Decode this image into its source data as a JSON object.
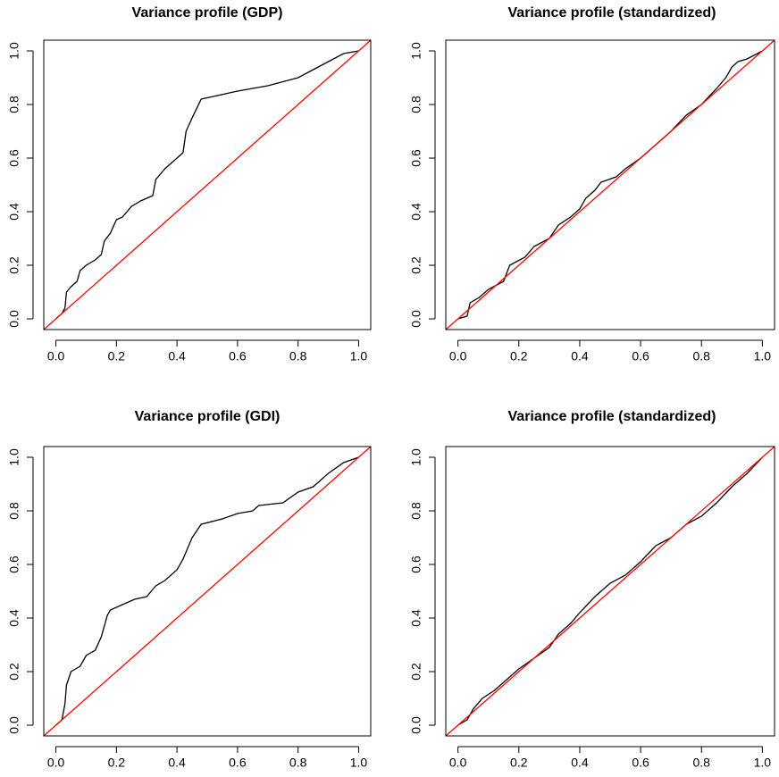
{
  "chart_data": [
    {
      "type": "line",
      "title": "Variance profile (GDP)",
      "xlim": [
        -0.04,
        1.04
      ],
      "ylim": [
        -0.04,
        1.04
      ],
      "xticks": [
        {
          "value": 0,
          "label": "0.0"
        },
        {
          "value": 0.2,
          "label": "0.2"
        },
        {
          "value": 0.4,
          "label": "0.4"
        },
        {
          "value": 0.6,
          "label": "0.6"
        },
        {
          "value": 0.8,
          "label": "0.8"
        },
        {
          "value": 1,
          "label": "1.0"
        }
      ],
      "yticks": [
        {
          "value": 0,
          "label": "0.0"
        },
        {
          "value": 0.2,
          "label": "0.2"
        },
        {
          "value": 0.4,
          "label": "0.4"
        },
        {
          "value": 0.6,
          "label": "0.6"
        },
        {
          "value": 0.8,
          "label": "0.8"
        },
        {
          "value": 1,
          "label": "1.0"
        }
      ],
      "series": [
        {
          "color": "#000000",
          "x": [
            0,
            0.02,
            0.03,
            0.035,
            0.05,
            0.07,
            0.08,
            0.1,
            0.13,
            0.15,
            0.16,
            0.18,
            0.2,
            0.22,
            0.25,
            0.28,
            0.32,
            0.33,
            0.36,
            0.4,
            0.42,
            0.43,
            0.45,
            0.48,
            0.52,
            0.6,
            0.7,
            0.8,
            0.85,
            0.9,
            0.95,
            1
          ],
          "values": [
            0,
            0.02,
            0.04,
            0.1,
            0.12,
            0.14,
            0.18,
            0.2,
            0.22,
            0.24,
            0.29,
            0.32,
            0.37,
            0.38,
            0.42,
            0.44,
            0.46,
            0.52,
            0.56,
            0.6,
            0.62,
            0.7,
            0.75,
            0.82,
            0.83,
            0.85,
            0.87,
            0.9,
            0.93,
            0.96,
            0.99,
            1
          ]
        },
        {
          "color": "#ff0000",
          "x": [
            -0.04,
            1.04
          ],
          "values": [
            -0.04,
            1.04
          ]
        }
      ]
    },
    {
      "type": "line",
      "title": "Variance profile (standardized)",
      "xlim": [
        -0.04,
        1.04
      ],
      "ylim": [
        -0.04,
        1.04
      ],
      "xticks": [
        {
          "value": 0,
          "label": "0.0"
        },
        {
          "value": 0.2,
          "label": "0.2"
        },
        {
          "value": 0.4,
          "label": "0.4"
        },
        {
          "value": 0.6,
          "label": "0.6"
        },
        {
          "value": 0.8,
          "label": "0.8"
        },
        {
          "value": 1,
          "label": "1.0"
        }
      ],
      "yticks": [
        {
          "value": 0,
          "label": "0.0"
        },
        {
          "value": 0.2,
          "label": "0.2"
        },
        {
          "value": 0.4,
          "label": "0.4"
        },
        {
          "value": 0.6,
          "label": "0.6"
        },
        {
          "value": 0.8,
          "label": "0.8"
        },
        {
          "value": 1,
          "label": "1.0"
        }
      ],
      "series": [
        {
          "color": "#000000",
          "x": [
            0,
            0.03,
            0.04,
            0.07,
            0.1,
            0.15,
            0.17,
            0.22,
            0.25,
            0.3,
            0.33,
            0.37,
            0.4,
            0.42,
            0.45,
            0.47,
            0.52,
            0.55,
            0.6,
            0.65,
            0.7,
            0.75,
            0.8,
            0.85,
            0.88,
            0.9,
            0.92,
            0.95,
            1
          ],
          "values": [
            0,
            0.01,
            0.06,
            0.08,
            0.11,
            0.14,
            0.2,
            0.23,
            0.27,
            0.3,
            0.35,
            0.38,
            0.41,
            0.45,
            0.48,
            0.51,
            0.53,
            0.56,
            0.6,
            0.65,
            0.7,
            0.76,
            0.8,
            0.86,
            0.9,
            0.94,
            0.96,
            0.97,
            1
          ]
        },
        {
          "color": "#ff0000",
          "x": [
            -0.04,
            1.04
          ],
          "values": [
            -0.04,
            1.04
          ]
        }
      ]
    },
    {
      "type": "line",
      "title": "Variance profile (GDI)",
      "xlim": [
        -0.04,
        1.04
      ],
      "ylim": [
        -0.04,
        1.04
      ],
      "xticks": [
        {
          "value": 0,
          "label": "0.0"
        },
        {
          "value": 0.2,
          "label": "0.2"
        },
        {
          "value": 0.4,
          "label": "0.4"
        },
        {
          "value": 0.6,
          "label": "0.6"
        },
        {
          "value": 0.8,
          "label": "0.8"
        },
        {
          "value": 1,
          "label": "1.0"
        }
      ],
      "yticks": [
        {
          "value": 0,
          "label": "0.0"
        },
        {
          "value": 0.2,
          "label": "0.2"
        },
        {
          "value": 0.4,
          "label": "0.4"
        },
        {
          "value": 0.6,
          "label": "0.6"
        },
        {
          "value": 0.8,
          "label": "0.8"
        },
        {
          "value": 1,
          "label": "1.0"
        }
      ],
      "series": [
        {
          "color": "#000000",
          "x": [
            0,
            0.02,
            0.03,
            0.035,
            0.05,
            0.08,
            0.1,
            0.13,
            0.15,
            0.17,
            0.18,
            0.22,
            0.26,
            0.3,
            0.33,
            0.36,
            0.4,
            0.42,
            0.45,
            0.48,
            0.55,
            0.6,
            0.65,
            0.67,
            0.75,
            0.8,
            0.85,
            0.9,
            0.95,
            1
          ],
          "values": [
            0,
            0.02,
            0.08,
            0.15,
            0.2,
            0.22,
            0.26,
            0.28,
            0.33,
            0.41,
            0.43,
            0.45,
            0.47,
            0.48,
            0.52,
            0.54,
            0.58,
            0.62,
            0.7,
            0.75,
            0.77,
            0.79,
            0.8,
            0.82,
            0.83,
            0.87,
            0.89,
            0.94,
            0.98,
            1
          ]
        },
        {
          "color": "#ff0000",
          "x": [
            -0.04,
            1.04
          ],
          "values": [
            -0.04,
            1.04
          ]
        }
      ]
    },
    {
      "type": "line",
      "title": "Variance profile (standardized)",
      "xlim": [
        -0.04,
        1.04
      ],
      "ylim": [
        -0.04,
        1.04
      ],
      "xticks": [
        {
          "value": 0,
          "label": "0.0"
        },
        {
          "value": 0.2,
          "label": "0.2"
        },
        {
          "value": 0.4,
          "label": "0.4"
        },
        {
          "value": 0.6,
          "label": "0.6"
        },
        {
          "value": 0.8,
          "label": "0.8"
        },
        {
          "value": 1,
          "label": "1.0"
        }
      ],
      "yticks": [
        {
          "value": 0,
          "label": "0.0"
        },
        {
          "value": 0.2,
          "label": "0.2"
        },
        {
          "value": 0.4,
          "label": "0.4"
        },
        {
          "value": 0.6,
          "label": "0.6"
        },
        {
          "value": 0.8,
          "label": "0.8"
        },
        {
          "value": 1,
          "label": "1.0"
        }
      ],
      "series": [
        {
          "color": "#000000",
          "x": [
            0,
            0.03,
            0.05,
            0.08,
            0.12,
            0.15,
            0.2,
            0.25,
            0.3,
            0.33,
            0.37,
            0.4,
            0.45,
            0.5,
            0.55,
            0.6,
            0.65,
            0.7,
            0.75,
            0.8,
            0.85,
            0.9,
            0.95,
            1
          ],
          "values": [
            0,
            0.02,
            0.06,
            0.1,
            0.13,
            0.16,
            0.21,
            0.25,
            0.29,
            0.34,
            0.38,
            0.42,
            0.48,
            0.53,
            0.56,
            0.61,
            0.67,
            0.7,
            0.75,
            0.78,
            0.83,
            0.89,
            0.94,
            1
          ]
        },
        {
          "color": "#ff0000",
          "x": [
            -0.04,
            1.04
          ],
          "values": [
            -0.04,
            1.04
          ]
        }
      ]
    }
  ]
}
